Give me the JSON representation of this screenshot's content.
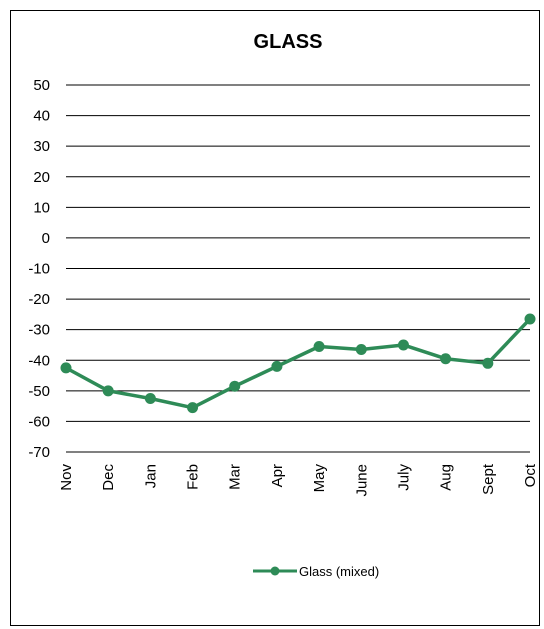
{
  "chart_data": {
    "type": "line",
    "title": "GLASS",
    "xlabel": "",
    "ylabel": "",
    "categories": [
      "Nov",
      "Dec",
      "Jan",
      "Feb",
      "Mar",
      "Apr",
      "May",
      "June",
      "July",
      "Aug",
      "Sept",
      "Oct"
    ],
    "series": [
      {
        "name": "Glass (mixed)",
        "color": "#2e8b57",
        "values": [
          -42.5,
          -50,
          -52.5,
          -55.5,
          -48.5,
          -42,
          -35.5,
          -36.5,
          -35,
          -39.5,
          -41,
          -26.5
        ]
      }
    ],
    "ylim": [
      -70,
      50
    ],
    "yticks": [
      "50",
      "40",
      "30",
      "20",
      "10",
      "0",
      "-10",
      "-20",
      "-30",
      "-40",
      "-50",
      "-60",
      "-70"
    ],
    "grid": "horizontal",
    "legend": "bottom"
  }
}
